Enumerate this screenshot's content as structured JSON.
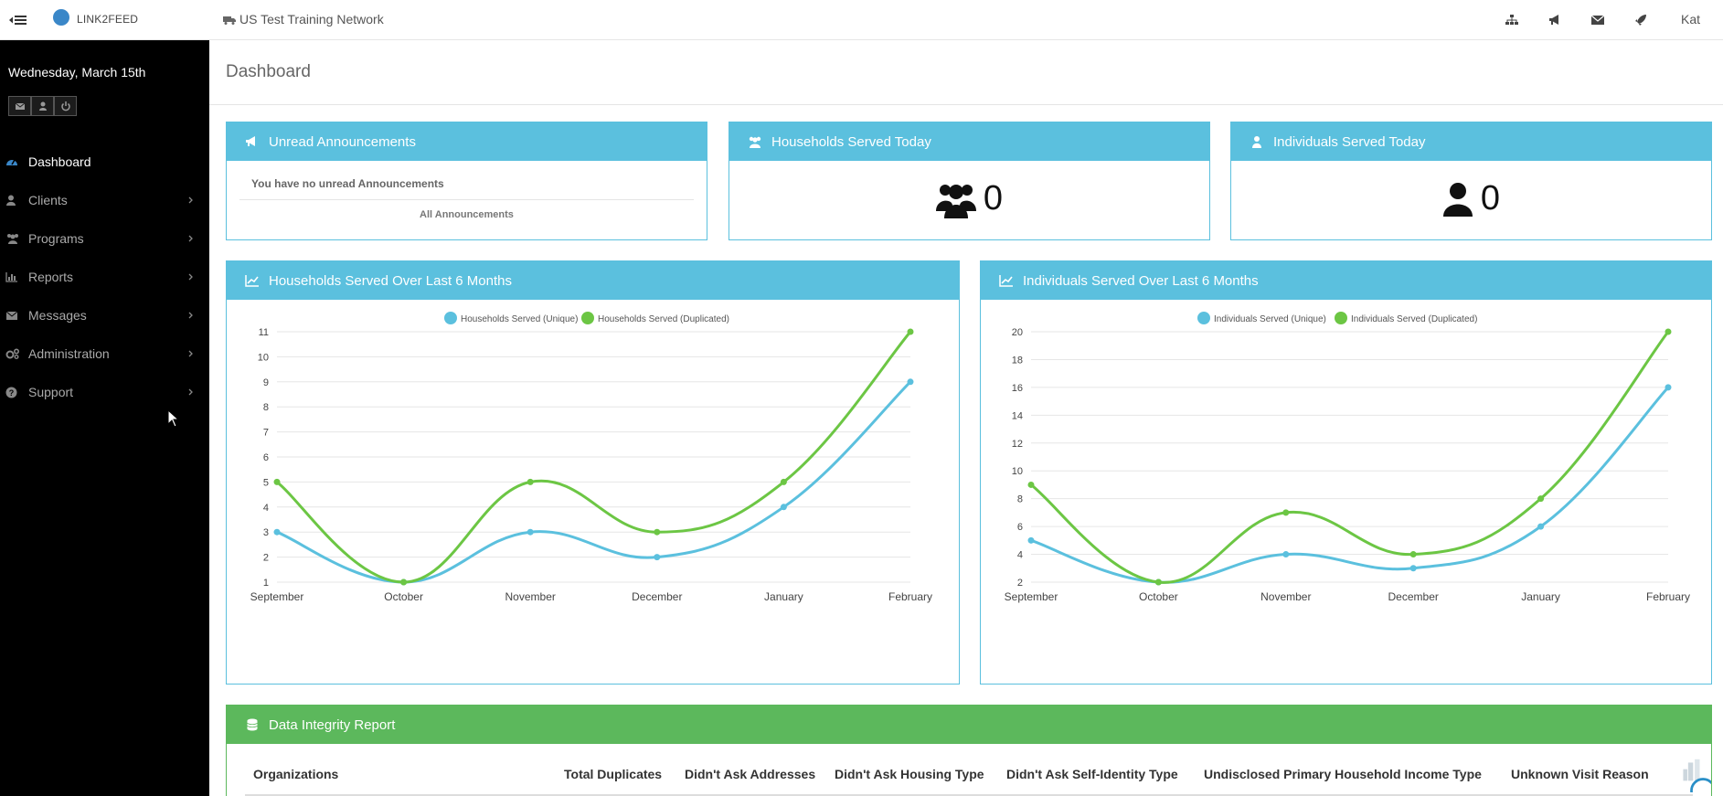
{
  "topbar": {
    "logo_text": "LINK2FEED",
    "network": "US Test Training Network",
    "user": "Kat",
    "icons": [
      "sitemap-icon",
      "bullhorn-icon",
      "envelope-icon",
      "rocket-icon"
    ]
  },
  "sidebar": {
    "date": "Wednesday, March 15th",
    "items": [
      {
        "label": "Dashboard",
        "icon": "dashboard-icon",
        "active": true
      },
      {
        "label": "Clients",
        "icon": "user-icon"
      },
      {
        "label": "Programs",
        "icon": "users-icon"
      },
      {
        "label": "Reports",
        "icon": "bar-chart-icon"
      },
      {
        "label": "Messages",
        "icon": "envelope-icon"
      },
      {
        "label": "Administration",
        "icon": "cogs-icon"
      },
      {
        "label": "Support",
        "icon": "question-circle-icon"
      }
    ]
  },
  "page": {
    "title": "Dashboard"
  },
  "announcements": {
    "title": "Unread Announcements",
    "empty_text": "You have no unread Announcements",
    "link": "All Announcements"
  },
  "households_today": {
    "title": "Households Served Today",
    "value": "0"
  },
  "individuals_today": {
    "title": "Individuals Served Today",
    "value": "0"
  },
  "households_chart": {
    "title": "Households Served Over Last 6 Months"
  },
  "individuals_chart": {
    "title": "Individuals Served Over Last 6 Months"
  },
  "data_integrity": {
    "title": "Data Integrity Report",
    "columns": [
      "Organizations",
      "Total Duplicates",
      "Didn't Ask Addresses",
      "Didn't Ask Housing Type",
      "Didn't Ask Self-Identity Type",
      "Undisclosed Primary Household Income Type",
      "Unknown Visit Reason"
    ]
  },
  "colors": {
    "info": "#5bc0de",
    "success": "#5cb85c",
    "line_unique": "#5bc0de",
    "line_duplicated": "#6cc644"
  },
  "chart_data": [
    {
      "type": "line",
      "categories": [
        "September",
        "October",
        "November",
        "December",
        "January",
        "February"
      ],
      "ylim": [
        1,
        11
      ],
      "yticks": [
        1,
        2,
        3,
        4,
        5,
        6,
        7,
        8,
        9,
        10,
        11
      ],
      "legend": "top",
      "grid": true,
      "series": [
        {
          "name": "Households Served (Unique)",
          "values": [
            3,
            1,
            3,
            2,
            4,
            9
          ]
        },
        {
          "name": "Households Served (Duplicated)",
          "values": [
            5,
            1,
            5,
            3,
            5,
            11
          ]
        }
      ]
    },
    {
      "type": "line",
      "categories": [
        "September",
        "October",
        "November",
        "December",
        "January",
        "February"
      ],
      "ylim": [
        2,
        20
      ],
      "yticks": [
        2,
        4,
        6,
        8,
        10,
        12,
        14,
        16,
        18,
        20
      ],
      "legend": "top",
      "grid": true,
      "series": [
        {
          "name": "Individuals Served (Unique)",
          "values": [
            5,
            2,
            4,
            3,
            6,
            16
          ]
        },
        {
          "name": "Individuals Served (Duplicated)",
          "values": [
            9,
            2,
            7,
            4,
            8,
            20
          ]
        }
      ]
    }
  ]
}
